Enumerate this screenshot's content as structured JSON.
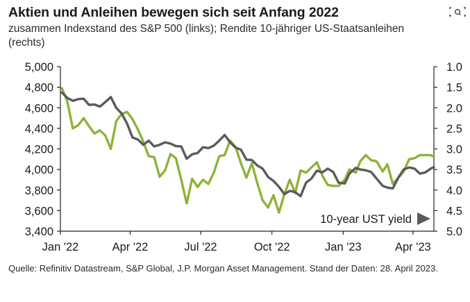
{
  "header": {
    "title": "Aktien und Anleihen bewegen sich seit Anfang 2022",
    "subtitle": "zusammen Indexstand des S&P 500 (links); Rendite 10-jähriger US-Staatsanleihen (rechts)"
  },
  "footer": {
    "source": "Quelle: Refinitiv Datastream, S&P Global, J.P. Morgan Asset Management. Stand der Daten: 28. April 2023."
  },
  "toolbar": {
    "lens_icon": "visual-search-icon"
  },
  "colors": {
    "sp500": "#8db33a",
    "ust": "#5a5a5c",
    "axis": "#222222"
  },
  "chart_data": {
    "type": "line",
    "title": "Aktien und Anleihen bewegen sich seit Anfang 2022",
    "x_tick_labels": [
      "Jan '22",
      "Apr '22",
      "Jul '22",
      "Oct '22",
      "Jan '23",
      "Apr '23"
    ],
    "x_range": [
      "2022-01-01",
      "2023-04-28"
    ],
    "y_left": {
      "ticks": [
        "5,000",
        "4,800",
        "4,600",
        "4,400",
        "4,200",
        "4,000",
        "3,800",
        "3,600",
        "3,400"
      ],
      "range": [
        3400,
        5000
      ]
    },
    "y_right": {
      "ticks": [
        "1.0",
        "1.5",
        "2.0",
        "2.5",
        "3.0",
        "3.5",
        "4.0",
        "4.5",
        "5.0"
      ],
      "range": [
        1.0,
        5.0
      ],
      "inverted": true
    },
    "annotation": "10-year UST yield",
    "grid": false,
    "series": [
      {
        "axis": "left",
        "x": [
          "2022-01-03",
          "2022-01-10",
          "2022-01-17",
          "2022-01-24",
          "2022-01-31",
          "2022-02-07",
          "2022-02-14",
          "2022-02-21",
          "2022-02-28",
          "2022-03-07",
          "2022-03-14",
          "2022-03-21",
          "2022-03-28",
          "2022-04-04",
          "2022-04-11",
          "2022-04-18",
          "2022-04-25",
          "2022-05-02",
          "2022-05-09",
          "2022-05-16",
          "2022-05-23",
          "2022-05-30",
          "2022-06-06",
          "2022-06-13",
          "2022-06-20",
          "2022-06-27",
          "2022-07-04",
          "2022-07-11",
          "2022-07-18",
          "2022-07-25",
          "2022-08-01",
          "2022-08-08",
          "2022-08-15",
          "2022-08-22",
          "2022-08-29",
          "2022-09-05",
          "2022-09-12",
          "2022-09-19",
          "2022-09-26",
          "2022-10-03",
          "2022-10-10",
          "2022-10-17",
          "2022-10-24",
          "2022-10-31",
          "2022-11-07",
          "2022-11-14",
          "2022-11-21",
          "2022-11-28",
          "2022-12-05",
          "2022-12-12",
          "2022-12-19",
          "2022-12-26",
          "2023-01-03",
          "2023-01-09",
          "2023-01-17",
          "2023-01-23",
          "2023-01-30",
          "2023-02-06",
          "2023-02-13",
          "2023-02-21",
          "2023-02-27",
          "2023-03-06",
          "2023-03-13",
          "2023-03-20",
          "2023-03-27",
          "2023-04-03",
          "2023-04-10",
          "2023-04-17",
          "2023-04-24",
          "2023-04-28"
        ],
        "values": [
          4790,
          4660,
          4400,
          4430,
          4500,
          4420,
          4350,
          4380,
          4330,
          4200,
          4470,
          4540,
          4560,
          4490,
          4390,
          4270,
          4130,
          4120,
          3930,
          3990,
          4150,
          4110,
          3900,
          3670,
          3910,
          3830,
          3900,
          3860,
          3970,
          4130,
          4140,
          4280,
          4220,
          4060,
          3920,
          4060,
          3870,
          3700,
          3630,
          3750,
          3580,
          3760,
          3900,
          3770,
          3990,
          3970,
          4020,
          4070,
          3940,
          3850,
          3840,
          3840,
          3900,
          4000,
          3970,
          4080,
          4140,
          4090,
          4080,
          3980,
          4050,
          3860,
          3920,
          3980,
          4100,
          4110,
          4140,
          4140,
          4140,
          4120
        ]
      },
      {
        "axis": "right",
        "x": [
          "2022-01-03",
          "2022-01-10",
          "2022-01-17",
          "2022-01-24",
          "2022-01-31",
          "2022-02-07",
          "2022-02-14",
          "2022-02-21",
          "2022-02-28",
          "2022-03-07",
          "2022-03-14",
          "2022-03-21",
          "2022-03-28",
          "2022-04-04",
          "2022-04-11",
          "2022-04-18",
          "2022-04-25",
          "2022-05-02",
          "2022-05-09",
          "2022-05-16",
          "2022-05-23",
          "2022-05-30",
          "2022-06-06",
          "2022-06-13",
          "2022-06-20",
          "2022-06-27",
          "2022-07-04",
          "2022-07-11",
          "2022-07-18",
          "2022-07-25",
          "2022-08-01",
          "2022-08-08",
          "2022-08-15",
          "2022-08-22",
          "2022-08-29",
          "2022-09-05",
          "2022-09-12",
          "2022-09-19",
          "2022-09-26",
          "2022-10-03",
          "2022-10-10",
          "2022-10-17",
          "2022-10-24",
          "2022-10-31",
          "2022-11-07",
          "2022-11-14",
          "2022-11-21",
          "2022-11-28",
          "2022-12-05",
          "2022-12-12",
          "2022-12-19",
          "2022-12-26",
          "2023-01-03",
          "2023-01-09",
          "2023-01-17",
          "2023-01-23",
          "2023-01-30",
          "2023-02-06",
          "2023-02-13",
          "2023-02-21",
          "2023-02-27",
          "2023-03-06",
          "2023-03-13",
          "2023-03-20",
          "2023-03-27",
          "2023-04-03",
          "2023-04-10",
          "2023-04-17",
          "2023-04-24",
          "2023-04-28"
        ],
        "values": [
          1.63,
          1.76,
          1.83,
          1.79,
          1.78,
          1.93,
          1.92,
          1.97,
          1.86,
          1.74,
          2.0,
          2.14,
          2.38,
          2.72,
          2.77,
          2.9,
          2.8,
          2.94,
          2.9,
          2.84,
          2.87,
          2.93,
          2.94,
          3.24,
          3.13,
          3.1,
          2.96,
          2.98,
          2.92,
          2.8,
          2.66,
          2.84,
          2.97,
          3.02,
          3.26,
          3.27,
          3.4,
          3.48,
          3.68,
          3.78,
          3.92,
          4.1,
          4.02,
          4.05,
          4.15,
          3.82,
          3.72,
          3.53,
          3.57,
          3.48,
          3.56,
          3.82,
          3.84,
          3.6,
          3.46,
          3.5,
          3.52,
          3.56,
          3.72,
          3.9,
          3.94,
          3.96,
          3.7,
          3.5,
          3.45,
          3.48,
          3.6,
          3.57,
          3.48,
          3.44
        ]
      }
    ]
  }
}
